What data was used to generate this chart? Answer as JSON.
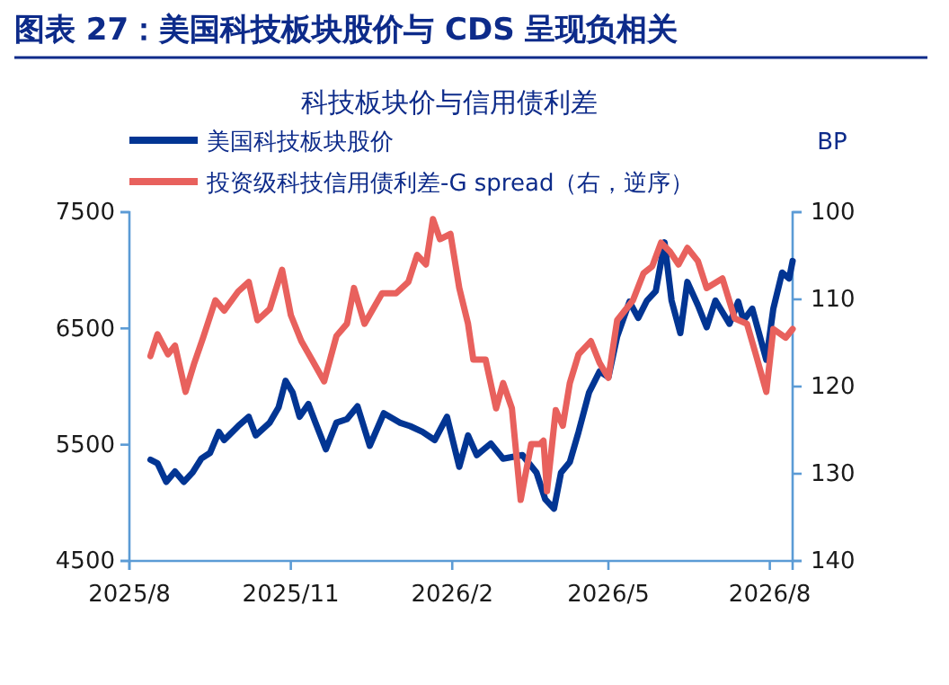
{
  "chart_data": {
    "type": "line",
    "title": "图表 27：美国科技板块股价与 CDS 呈现负相关",
    "subtitle": "科技板块价与信用债利差",
    "y2label": "BP",
    "legend": "top left",
    "xlim": [
      "2025-08-01",
      "2026-08-14"
    ],
    "xticks": [
      {
        "value": "2025-08",
        "label": "2025/8"
      },
      {
        "value": "2025-11",
        "label": "2025/11"
      },
      {
        "value": "2026-02",
        "label": "2026/2"
      },
      {
        "value": "2026-05",
        "label": "2026/5"
      },
      {
        "value": "2026-08",
        "label": "2026/8"
      }
    ],
    "ylim": [
      4500,
      7500
    ],
    "yticks": [
      4500,
      5500,
      6500,
      7500
    ],
    "y2lim": [
      140,
      100
    ],
    "y2ticks": [
      100,
      110,
      120,
      130,
      140
    ],
    "series": [
      {
        "name": "美国科技板块股价",
        "color": "#023593",
        "x": [
          "2025-08-13",
          "2025-08-17",
          "2025-08-22",
          "2025-08-27",
          "2025-09-01",
          "2025-09-06",
          "2025-09-11",
          "2025-09-16",
          "2025-09-21",
          "2025-09-24",
          "2025-10-02",
          "2025-10-08",
          "2025-10-12",
          "2025-10-20",
          "2025-10-25",
          "2025-10-29",
          "2025-11-02",
          "2025-11-06",
          "2025-11-11",
          "2025-11-15",
          "2025-11-21",
          "2025-11-27",
          "2025-12-03",
          "2025-12-09",
          "2025-12-16",
          "2025-12-24",
          "2026-01-02",
          "2026-01-08",
          "2026-01-15",
          "2026-01-22",
          "2026-01-29",
          "2026-02-05",
          "2026-02-10",
          "2026-02-15",
          "2026-02-23",
          "2026-03-02",
          "2026-03-13",
          "2026-03-21",
          "2026-03-26",
          "2026-03-31",
          "2026-04-04",
          "2026-04-09",
          "2026-04-14",
          "2026-04-20",
          "2026-04-26",
          "2026-05-01",
          "2026-05-06",
          "2026-05-13",
          "2026-05-18",
          "2026-05-23",
          "2026-05-28",
          "2026-06-02",
          "2026-06-06",
          "2026-06-11",
          "2026-06-15",
          "2026-06-21",
          "2026-06-26",
          "2026-07-01",
          "2026-07-09",
          "2026-07-14",
          "2026-07-17",
          "2026-07-22",
          "2026-07-30",
          "2026-08-03",
          "2026-08-08",
          "2026-08-12",
          "2026-08-14"
        ],
        "values": [
          5370,
          5340,
          5180,
          5270,
          5180,
          5260,
          5380,
          5430,
          5610,
          5540,
          5660,
          5740,
          5580,
          5690,
          5820,
          6050,
          5950,
          5740,
          5850,
          5690,
          5460,
          5690,
          5720,
          5830,
          5490,
          5770,
          5690,
          5660,
          5610,
          5540,
          5740,
          5310,
          5580,
          5410,
          5510,
          5380,
          5410,
          5260,
          5030,
          4950,
          5260,
          5350,
          5610,
          5950,
          6130,
          6080,
          6430,
          6730,
          6590,
          6740,
          6820,
          7240,
          6740,
          6460,
          6900,
          6700,
          6510,
          6740,
          6540,
          6730,
          6570,
          6670,
          6230,
          6670,
          6980,
          6930,
          7080
        ]
      },
      {
        "name": "投资级科技信用债利差-G spread（右，逆序）",
        "color": "#e8615d",
        "axis": "y2",
        "x": [
          "2025-08-13",
          "2025-08-17",
          "2025-08-23",
          "2025-08-27",
          "2025-09-02",
          "2025-09-07",
          "2025-09-12",
          "2025-09-19",
          "2025-09-24",
          "2025-10-02",
          "2025-10-08",
          "2025-10-13",
          "2025-10-20",
          "2025-10-27",
          "2025-11-01",
          "2025-11-07",
          "2025-11-13",
          "2025-11-20",
          "2025-11-27",
          "2025-12-03",
          "2025-12-07",
          "2025-12-13",
          "2025-12-23",
          "2025-12-31",
          "2026-01-07",
          "2026-01-12",
          "2026-01-17",
          "2026-01-21",
          "2026-01-25",
          "2026-01-31",
          "2026-02-05",
          "2026-02-10",
          "2026-02-13",
          "2026-02-20",
          "2026-02-26",
          "2026-03-02",
          "2026-03-07",
          "2026-03-12",
          "2026-03-18",
          "2026-03-23",
          "2026-03-25",
          "2026-03-27",
          "2026-04-01",
          "2026-04-05",
          "2026-04-09",
          "2026-04-14",
          "2026-04-21",
          "2026-04-26",
          "2026-05-01",
          "2026-05-06",
          "2026-05-15",
          "2026-05-21",
          "2026-05-26",
          "2026-05-31",
          "2026-06-05",
          "2026-06-10",
          "2026-06-15",
          "2026-06-21",
          "2026-06-26",
          "2026-07-05",
          "2026-07-12",
          "2026-07-19",
          "2026-07-24",
          "2026-07-30",
          "2026-08-03",
          "2026-08-10",
          "2026-08-14"
        ],
        "values": [
          116.5,
          114.0,
          116.3,
          115.3,
          120.6,
          117.3,
          114.4,
          110.1,
          111.3,
          109.1,
          108.0,
          112.4,
          111.1,
          106.6,
          111.8,
          114.8,
          116.9,
          119.4,
          114.2,
          112.8,
          108.7,
          112.8,
          109.3,
          109.3,
          108.0,
          104.9,
          106.0,
          100.8,
          103.1,
          102.5,
          108.7,
          112.8,
          116.9,
          116.9,
          122.5,
          119.6,
          122.5,
          133.0,
          126.6,
          126.6,
          126.2,
          132.0,
          122.7,
          124.5,
          119.6,
          116.3,
          114.8,
          117.3,
          119.0,
          112.4,
          110.1,
          107.0,
          106.2,
          103.5,
          104.5,
          106.0,
          104.1,
          105.6,
          108.7,
          107.6,
          112.2,
          112.8,
          116.3,
          120.6,
          113.4,
          114.4,
          113.4
        ]
      }
    ]
  }
}
